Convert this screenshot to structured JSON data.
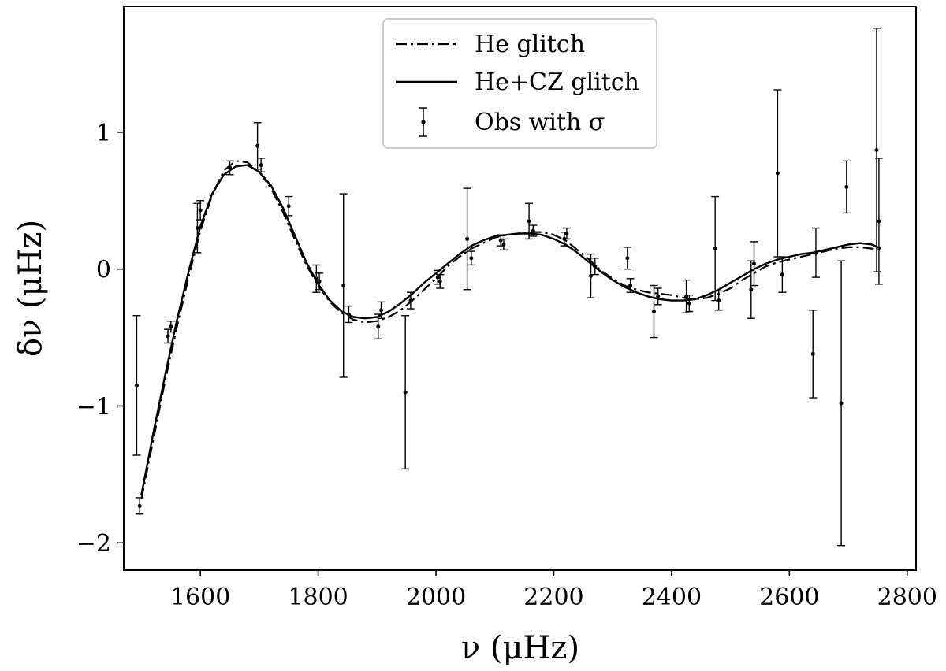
{
  "chart_data": {
    "type": "line",
    "title": "",
    "xlabel": "ν (μHz)",
    "ylabel": "δν (μHz)",
    "xlim": [
      1470,
      2815
    ],
    "ylim": [
      -2.2,
      1.92
    ],
    "xticks": [
      1600,
      1800,
      2000,
      2200,
      2400,
      2600,
      2800
    ],
    "xtick_labels": [
      "1600",
      "1800",
      "2000",
      "2200",
      "2400",
      "2600",
      "2800"
    ],
    "yticks": [
      -2,
      -1,
      0,
      1
    ],
    "ytick_labels": [
      "−2",
      "−1",
      "0",
      "1"
    ],
    "grid": false,
    "legend_position": "top-center",
    "legend": [
      "He glitch",
      "He+CZ glitch",
      "Obs with σ"
    ],
    "series": [
      {
        "name": "He glitch",
        "style": "dash-dot",
        "color": "#000000",
        "x": [
          1500,
          1520,
          1540,
          1560,
          1580,
          1600,
          1620,
          1640,
          1660,
          1680,
          1700,
          1720,
          1740,
          1760,
          1780,
          1800,
          1820,
          1840,
          1860,
          1880,
          1900,
          1920,
          1940,
          1960,
          1980,
          2000,
          2020,
          2040,
          2060,
          2080,
          2100,
          2120,
          2140,
          2160,
          2180,
          2200,
          2220,
          2240,
          2260,
          2280,
          2300,
          2320,
          2340,
          2360,
          2380,
          2400,
          2420,
          2440,
          2460,
          2480,
          2500,
          2520,
          2540,
          2560,
          2580,
          2600,
          2620,
          2640,
          2660,
          2680,
          2700,
          2720,
          2740,
          2755
        ],
        "y": [
          -1.68,
          -1.25,
          -0.82,
          -0.43,
          -0.06,
          0.28,
          0.54,
          0.72,
          0.79,
          0.78,
          0.71,
          0.59,
          0.42,
          0.22,
          0.03,
          -0.12,
          -0.24,
          -0.32,
          -0.37,
          -0.39,
          -0.38,
          -0.35,
          -0.3,
          -0.23,
          -0.15,
          -0.07,
          0.02,
          0.09,
          0.15,
          0.19,
          0.23,
          0.25,
          0.26,
          0.27,
          0.27,
          0.25,
          0.21,
          0.14,
          0.07,
          -0.01,
          -0.07,
          -0.12,
          -0.15,
          -0.17,
          -0.18,
          -0.19,
          -0.21,
          -0.22,
          -0.21,
          -0.18,
          -0.14,
          -0.08,
          -0.03,
          0.02,
          0.05,
          0.07,
          0.09,
          0.11,
          0.13,
          0.15,
          0.16,
          0.16,
          0.15,
          0.14
        ]
      },
      {
        "name": "He+CZ glitch",
        "style": "solid",
        "color": "#000000",
        "x": [
          1500,
          1520,
          1540,
          1560,
          1580,
          1600,
          1620,
          1640,
          1660,
          1680,
          1700,
          1720,
          1740,
          1760,
          1780,
          1800,
          1820,
          1840,
          1860,
          1880,
          1900,
          1920,
          1940,
          1960,
          1980,
          2000,
          2020,
          2040,
          2060,
          2080,
          2100,
          2120,
          2140,
          2160,
          2180,
          2200,
          2220,
          2240,
          2260,
          2280,
          2300,
          2320,
          2340,
          2360,
          2380,
          2400,
          2420,
          2440,
          2460,
          2480,
          2500,
          2520,
          2540,
          2560,
          2580,
          2600,
          2620,
          2640,
          2660,
          2680,
          2700,
          2720,
          2740,
          2755
        ],
        "y": [
          -1.65,
          -1.2,
          -0.78,
          -0.38,
          -0.02,
          0.31,
          0.55,
          0.69,
          0.75,
          0.76,
          0.71,
          0.61,
          0.45,
          0.25,
          0.05,
          -0.11,
          -0.23,
          -0.31,
          -0.35,
          -0.36,
          -0.35,
          -0.31,
          -0.25,
          -0.18,
          -0.1,
          -0.03,
          0.04,
          0.11,
          0.17,
          0.21,
          0.24,
          0.25,
          0.26,
          0.26,
          0.25,
          0.22,
          0.18,
          0.12,
          0.05,
          -0.02,
          -0.08,
          -0.13,
          -0.17,
          -0.2,
          -0.22,
          -0.23,
          -0.23,
          -0.22,
          -0.19,
          -0.15,
          -0.1,
          -0.05,
          0.0,
          0.04,
          0.07,
          0.09,
          0.11,
          0.12,
          0.14,
          0.16,
          0.18,
          0.19,
          0.18,
          0.15
        ]
      }
    ],
    "observations": {
      "name": "Obs with σ",
      "points": [
        {
          "x": 1492,
          "y": -0.85,
          "err": 0.51
        },
        {
          "x": 1497,
          "y": -1.73,
          "err": 0.06
        },
        {
          "x": 1545,
          "y": -0.49,
          "err": 0.05
        },
        {
          "x": 1550,
          "y": -0.42,
          "err": 0.04
        },
        {
          "x": 1595,
          "y": 0.3,
          "err": 0.18
        },
        {
          "x": 1600,
          "y": 0.43,
          "err": 0.07
        },
        {
          "x": 1650,
          "y": 0.74,
          "err": 0.05
        },
        {
          "x": 1697,
          "y": 0.9,
          "err": 0.17
        },
        {
          "x": 1703,
          "y": 0.76,
          "err": 0.05
        },
        {
          "x": 1750,
          "y": 0.46,
          "err": 0.07
        },
        {
          "x": 1797,
          "y": -0.07,
          "err": 0.1
        },
        {
          "x": 1802,
          "y": -0.09,
          "err": 0.06
        },
        {
          "x": 1843,
          "y": -0.12,
          "err": 0.67
        },
        {
          "x": 1852,
          "y": -0.33,
          "err": 0.06
        },
        {
          "x": 1902,
          "y": -0.42,
          "err": 0.09
        },
        {
          "x": 1907,
          "y": -0.3,
          "err": 0.06
        },
        {
          "x": 1948,
          "y": -0.9,
          "err": 0.56
        },
        {
          "x": 1957,
          "y": -0.23,
          "err": 0.06
        },
        {
          "x": 2003,
          "y": -0.06,
          "err": 0.05
        },
        {
          "x": 2007,
          "y": -0.09,
          "err": 0.05
        },
        {
          "x": 2053,
          "y": 0.22,
          "err": 0.37
        },
        {
          "x": 2060,
          "y": 0.08,
          "err": 0.05
        },
        {
          "x": 2110,
          "y": 0.21,
          "err": 0.04
        },
        {
          "x": 2115,
          "y": 0.18,
          "err": 0.04
        },
        {
          "x": 2158,
          "y": 0.35,
          "err": 0.13
        },
        {
          "x": 2165,
          "y": 0.28,
          "err": 0.04
        },
        {
          "x": 2218,
          "y": 0.22,
          "err": 0.05
        },
        {
          "x": 2222,
          "y": 0.26,
          "err": 0.04
        },
        {
          "x": 2263,
          "y": -0.05,
          "err": 0.16
        },
        {
          "x": 2270,
          "y": 0.02,
          "err": 0.06
        },
        {
          "x": 2325,
          "y": 0.08,
          "err": 0.08
        },
        {
          "x": 2330,
          "y": -0.12,
          "err": 0.05
        },
        {
          "x": 2370,
          "y": -0.31,
          "err": 0.19
        },
        {
          "x": 2377,
          "y": -0.2,
          "err": 0.06
        },
        {
          "x": 2425,
          "y": -0.2,
          "err": 0.12
        },
        {
          "x": 2430,
          "y": -0.25,
          "err": 0.06
        },
        {
          "x": 2474,
          "y": 0.15,
          "err": 0.38
        },
        {
          "x": 2480,
          "y": -0.23,
          "err": 0.07
        },
        {
          "x": 2535,
          "y": -0.15,
          "err": 0.21
        },
        {
          "x": 2540,
          "y": 0.04,
          "err": 0.16
        },
        {
          "x": 2580,
          "y": 0.7,
          "err": 0.61
        },
        {
          "x": 2588,
          "y": -0.04,
          "err": 0.13
        },
        {
          "x": 2640,
          "y": -0.62,
          "err": 0.32
        },
        {
          "x": 2645,
          "y": 0.12,
          "err": 0.18
        },
        {
          "x": 2688,
          "y": -0.98,
          "err": 1.04
        },
        {
          "x": 2697,
          "y": 0.6,
          "err": 0.19
        },
        {
          "x": 2748,
          "y": 0.87,
          "err": 0.89
        },
        {
          "x": 2752,
          "y": 0.35,
          "err": 0.46
        }
      ]
    }
  }
}
